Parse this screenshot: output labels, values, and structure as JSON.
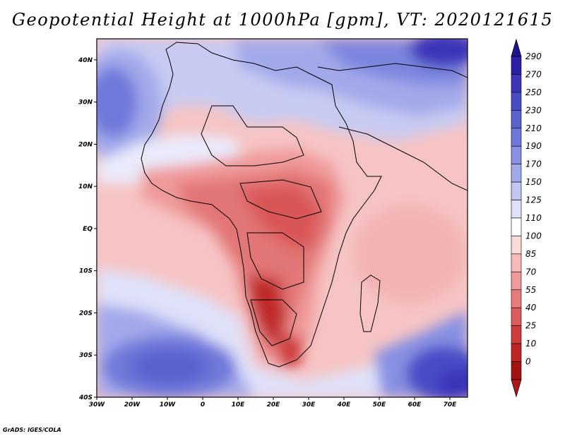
{
  "title": "Geopotential Height at 1000hPa [gpm], VT: 2020121615",
  "credit": "GrADS: IGES/COLA",
  "map": {
    "variable": "Geopotential Height",
    "level": "1000hPa",
    "units": "gpm",
    "valid_time": "2020121615",
    "lon_range": [
      -30,
      75
    ],
    "lat_range": [
      -40,
      45
    ],
    "lon_ticks": [
      {
        "value": -30,
        "label": "30W"
      },
      {
        "value": -20,
        "label": "20W"
      },
      {
        "value": -10,
        "label": "10W"
      },
      {
        "value": 0,
        "label": "0"
      },
      {
        "value": 10,
        "label": "10E"
      },
      {
        "value": 20,
        "label": "20E"
      },
      {
        "value": 30,
        "label": "30E"
      },
      {
        "value": 40,
        "label": "40E"
      },
      {
        "value": 50,
        "label": "50E"
      },
      {
        "value": 60,
        "label": "60E"
      },
      {
        "value": 70,
        "label": "70E"
      }
    ],
    "lat_ticks": [
      {
        "value": 40,
        "label": "40N"
      },
      {
        "value": 30,
        "label": "30N"
      },
      {
        "value": 20,
        "label": "20N"
      },
      {
        "value": 10,
        "label": "10N"
      },
      {
        "value": 0,
        "label": "EQ"
      },
      {
        "value": -10,
        "label": "10S"
      },
      {
        "value": -20,
        "label": "20S"
      },
      {
        "value": -30,
        "label": "30S"
      },
      {
        "value": -40,
        "label": "40S"
      }
    ]
  },
  "colorbar": {
    "levels": [
      {
        "label": "290",
        "color": "#2b1fa8"
      },
      {
        "label": "270",
        "color": "#3a35b9"
      },
      {
        "label": "250",
        "color": "#4a4cc6"
      },
      {
        "label": "230",
        "color": "#5a62d0"
      },
      {
        "label": "210",
        "color": "#6f78da"
      },
      {
        "label": "190",
        "color": "#8790e2"
      },
      {
        "label": "170",
        "color": "#a2a9ea"
      },
      {
        "label": "150",
        "color": "#c2c6f2"
      },
      {
        "label": "125",
        "color": "#dfe1f9"
      },
      {
        "label": "110",
        "color": "#ffffff"
      },
      {
        "label": "100",
        "color": "#fbdada"
      },
      {
        "label": "85",
        "color": "#f6baba"
      },
      {
        "label": "70",
        "color": "#ef9a9a"
      },
      {
        "label": "55",
        "color": "#e77a7a"
      },
      {
        "label": "40",
        "color": "#dc5a5a"
      },
      {
        "label": "25",
        "color": "#cf3c3c"
      },
      {
        "label": "10",
        "color": "#c02424"
      },
      {
        "label": "0",
        "color": "#a61010"
      }
    ],
    "top_arrow_color": "#1f1590",
    "bottom_arrow_color": "#b01818"
  }
}
